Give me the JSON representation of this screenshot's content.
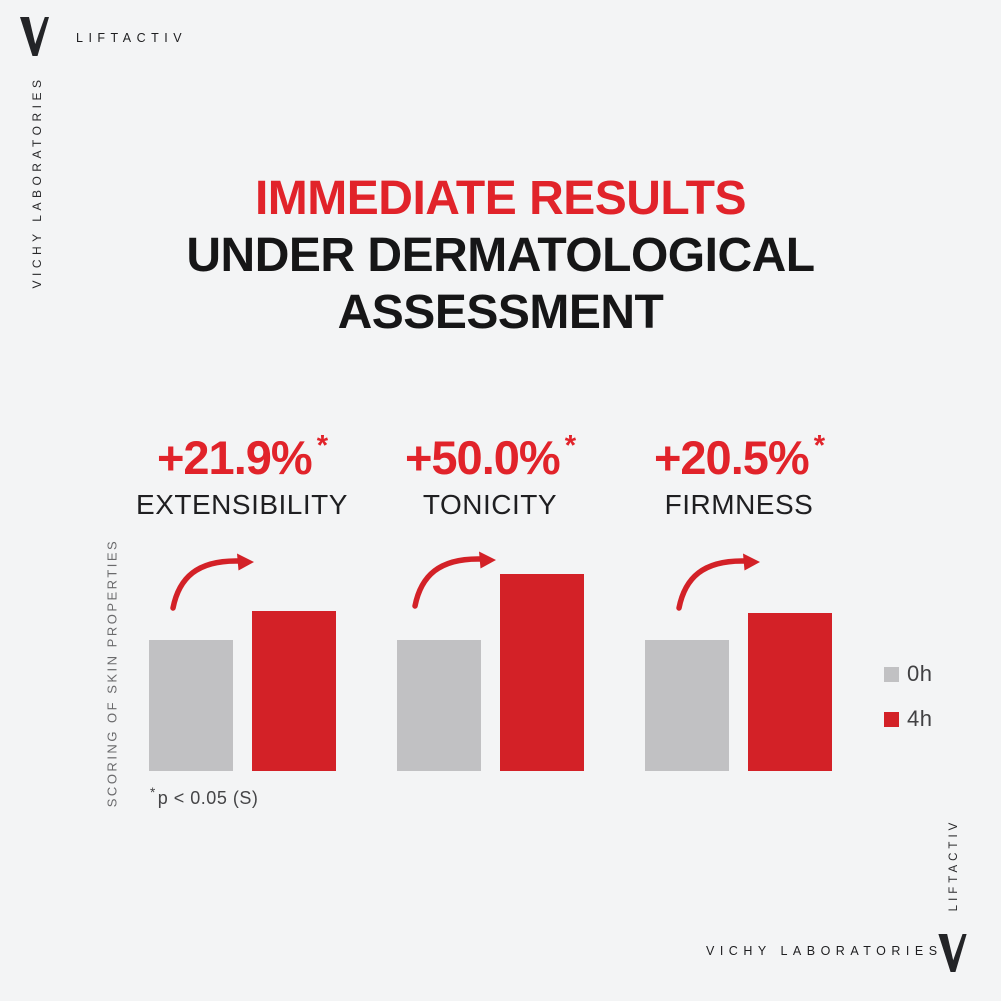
{
  "page": {
    "background": "#f3f4f5"
  },
  "brand": {
    "product": "LIFTACTIV",
    "company": "VICHY LABORATORIES",
    "logo_icon": "vichy-v-icon",
    "logo_color": "#232427"
  },
  "title": {
    "line1": "IMMEDIATE RESULTS",
    "line2": "UNDER DERMATOLOGICAL",
    "line3": "ASSESSMENT"
  },
  "colors": {
    "accent_red": "#d32127",
    "text_red": "#e1232a",
    "bar_gray": "#c1c1c3",
    "text_dark": "#161617"
  },
  "chart_data": {
    "type": "bar",
    "ylabel": "SCORING OF SKIN PROPERTIES",
    "xlabel": "",
    "axes_hidden": true,
    "legend_position": "right",
    "series": [
      {
        "name": "0h",
        "color": "#c1c1c3"
      },
      {
        "name": "4h",
        "color": "#d32127"
      }
    ],
    "groups": [
      {
        "label": "EXTENSIBILITY",
        "delta": "+21.9%",
        "sig": "*",
        "values": [
          100,
          121.9
        ]
      },
      {
        "label": "TONICITY",
        "delta": "+50.0%",
        "sig": "*",
        "values": [
          100,
          150.0
        ]
      },
      {
        "label": "FIRMNESS",
        "delta": "+20.5%",
        "sig": "*",
        "values": [
          100,
          120.5
        ]
      }
    ],
    "annotations": "red curved arrow rising from each 0h bar to its 4h bar",
    "footnote_sig": "*",
    "footnote_text": "p < 0.05 (S)"
  }
}
